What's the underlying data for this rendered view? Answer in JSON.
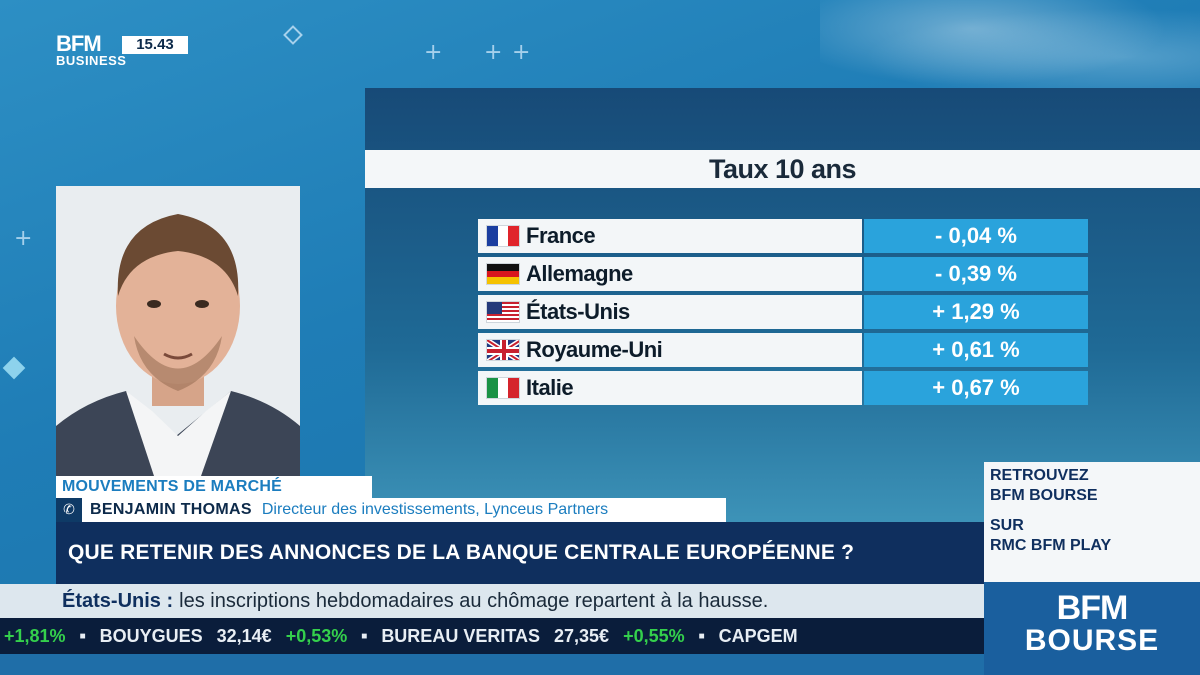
{
  "channel": {
    "logo_main": "BFM",
    "logo_sub": "BUSINESS",
    "time": "15.43"
  },
  "chart_data": {
    "type": "table",
    "title": "Taux 10 ans",
    "rows": [
      {
        "country": "France",
        "flag": "fr-flag-icon",
        "value": "- 0,04 %"
      },
      {
        "country": "Allemagne",
        "flag": "de-flag-icon",
        "value": "- 0,39 %"
      },
      {
        "country": "États-Unis",
        "flag": "us-flag-icon",
        "value": "+ 1,29 %"
      },
      {
        "country": "Royaume-Uni",
        "flag": "uk-flag-icon",
        "value": "+ 0,61 %"
      },
      {
        "country": "Italie",
        "flag": "it-flag-icon",
        "value": "+ 0,67 %"
      }
    ],
    "values_numeric": [
      -0.04,
      -0.39,
      1.29,
      0.61,
      0.67
    ]
  },
  "lower_third": {
    "section": "MOUVEMENTS DE MARCHÉ",
    "guest_name": "BENJAMIN THOMAS",
    "guest_role": "Directeur des investissements, Lynceus Partners",
    "headline": "QUE RETENIR DES ANNONCES DE LA BANQUE CENTRALE EUROPÉENNE ?"
  },
  "news": {
    "country": "États-Unis :",
    "text": "les inscriptions hebdomadaires au chômage repartent à la hausse."
  },
  "ticker": [
    {
      "text": "+1,81%",
      "color": "green"
    },
    {
      "text": "BOUYGUES",
      "color": "white"
    },
    {
      "text": "32,14€",
      "color": "white"
    },
    {
      "text": "+0,53%",
      "color": "green"
    },
    {
      "text": "BUREAU VERITAS",
      "color": "white"
    },
    {
      "text": "27,35€",
      "color": "white"
    },
    {
      "text": "+0,55%",
      "color": "green"
    },
    {
      "text": "CAPGEM",
      "color": "white"
    }
  ],
  "promo": {
    "line1": "RETROUVEZ",
    "line2": "BFM BOURSE",
    "line3": "SUR",
    "line4": "RMC BFM PLAY"
  },
  "brand": {
    "line1": "BFM",
    "line2": "BOURSE"
  },
  "colors": {
    "accent_blue": "#2aa3dc",
    "navy": "#0f2f5e",
    "ticker_green": "#34d04c"
  }
}
